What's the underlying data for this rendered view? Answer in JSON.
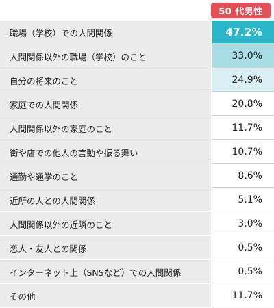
{
  "header": {
    "badge_label": "50 代男性"
  },
  "colors": {
    "badge": "#e34f56",
    "top_value": "#2ab6c9",
    "second_value": "#a9dde5",
    "third_value": "#d8f0f4",
    "label_bg": "#ebebeb"
  },
  "rows": [
    {
      "label": "職場（学校）での人間関係",
      "value": "47.2%"
    },
    {
      "label": "人間関係以外の職場（学校）のこと",
      "value": "33.0%"
    },
    {
      "label": "自分の将来のこと",
      "value": "24.9%"
    },
    {
      "label": "家庭での人間関係",
      "value": "20.8%"
    },
    {
      "label": "人間関係以外の家庭のこと",
      "value": "11.7%"
    },
    {
      "label": "街や店での他人の言動や振る舞い",
      "value": "10.7%"
    },
    {
      "label": "通勤や通学のこと",
      "value": "8.6%"
    },
    {
      "label": "近所の人との人間関係",
      "value": "5.1%"
    },
    {
      "label": "人間関係以外の近隣のこと",
      "value": "3.0%"
    },
    {
      "label": "恋人・友人との関係",
      "value": "0.5%"
    },
    {
      "label": "インターネット上（SNSなど）での人間関係",
      "value": "0.5%"
    },
    {
      "label": "その他",
      "value": "11.7%"
    }
  ]
}
